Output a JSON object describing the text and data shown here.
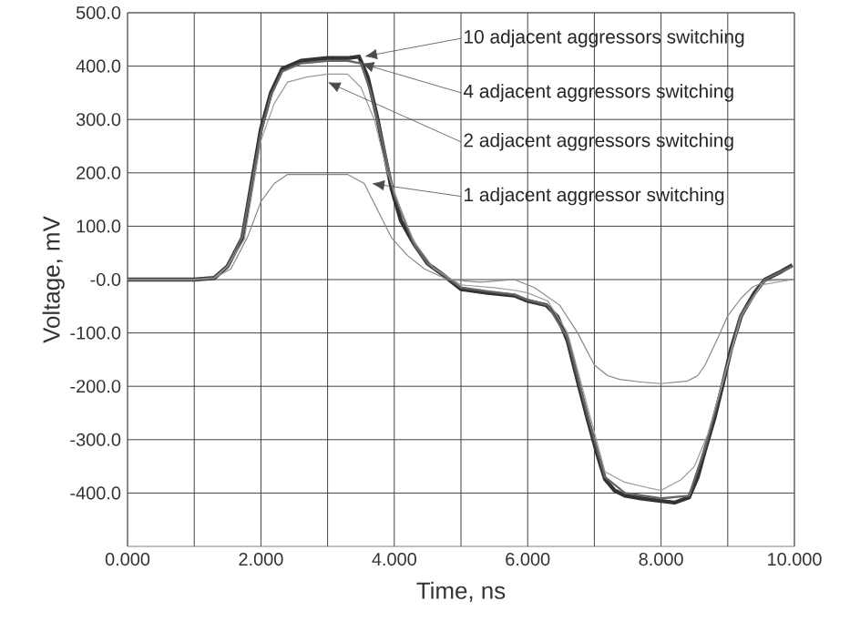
{
  "chart_data": {
    "type": "line",
    "xlabel": "Time, ns",
    "ylabel": "Voltage, mV",
    "xlim": [
      0,
      10
    ],
    "ylim": [
      -500,
      500
    ],
    "xticks": [
      {
        "value": 0,
        "label": "0.000"
      },
      {
        "value": 1,
        "label": null
      },
      {
        "value": 2,
        "label": "2.000"
      },
      {
        "value": 3,
        "label": null
      },
      {
        "value": 4,
        "label": "4.000"
      },
      {
        "value": 5,
        "label": null
      },
      {
        "value": 6,
        "label": "6.000"
      },
      {
        "value": 7,
        "label": null
      },
      {
        "value": 8,
        "label": "8.000"
      },
      {
        "value": 9,
        "label": null
      },
      {
        "value": 10,
        "label": "10.000"
      }
    ],
    "yticks": [
      {
        "value": -400,
        "label": "-400.0"
      },
      {
        "value": -300,
        "label": "-300.0"
      },
      {
        "value": -200,
        "label": "-200.0"
      },
      {
        "value": -100,
        "label": "-100.0"
      },
      {
        "value": 0,
        "label": "-0.0"
      },
      {
        "value": 100,
        "label": "100.0"
      },
      {
        "value": 200,
        "label": "200.0"
      },
      {
        "value": 300,
        "label": "300.0"
      },
      {
        "value": 400,
        "label": "400.0"
      },
      {
        "value": 500,
        "label": "500.0"
      }
    ],
    "grid": true,
    "series": [
      {
        "color": "#333333",
        "x": [
          0,
          1.0,
          1.3,
          1.5,
          1.72,
          2.0,
          2.15,
          2.32,
          2.6,
          3.0,
          3.3,
          3.47,
          3.6,
          3.74,
          3.96,
          4.1,
          4.29,
          4.5,
          4.73,
          5.0,
          5.4,
          5.8,
          6.0,
          6.28,
          6.45,
          6.6,
          6.75,
          6.9,
          7.05,
          7.16,
          7.3,
          7.46,
          7.7,
          8.0,
          8.2,
          8.42,
          8.55,
          8.66,
          8.8,
          8.93,
          9.05,
          9.2,
          9.4,
          9.56,
          9.8,
          9.97
        ],
        "values": [
          0,
          0,
          3,
          25,
          78,
          282,
          350,
          395,
          410,
          415,
          415,
          418,
          380,
          306,
          170,
          110,
          68,
          30,
          9,
          -18,
          -25,
          -30,
          -40,
          -48,
          -70,
          -115,
          -190,
          -262,
          -330,
          -374,
          -395,
          -405,
          -410,
          -415,
          -418,
          -408,
          -370,
          -320,
          -260,
          -194,
          -130,
          -68,
          -25,
          0,
          15,
          27
        ]
      },
      {
        "color": "#666666",
        "x": [
          0,
          1.0,
          1.3,
          1.5,
          1.72,
          2.0,
          2.15,
          2.32,
          2.6,
          3.0,
          3.3,
          3.5,
          3.65,
          3.8,
          4.0,
          4.3,
          4.5,
          4.75,
          5.0,
          5.4,
          5.8,
          6.0,
          6.3,
          6.6,
          6.9,
          7.16,
          7.46,
          8.0,
          8.42,
          8.66,
          8.93,
          9.2,
          9.56,
          9.97
        ],
        "values": [
          0,
          0,
          3,
          25,
          80,
          275,
          345,
          390,
          405,
          410,
          410,
          405,
          350,
          270,
          160,
          65,
          30,
          8,
          -15,
          -22,
          -28,
          -38,
          -48,
          -110,
          -255,
          -370,
          -400,
          -410,
          -405,
          -315,
          -190,
          -65,
          0,
          25
        ]
      },
      {
        "color": "#999999",
        "x": [
          0,
          1.0,
          1.3,
          1.5,
          1.75,
          2.0,
          2.2,
          2.4,
          2.7,
          3.0,
          3.3,
          3.5,
          3.7,
          3.9,
          4.1,
          4.3,
          4.6,
          5.0,
          5.5,
          5.8,
          6.0,
          6.3,
          6.6,
          6.9,
          7.16,
          7.46,
          7.8,
          8.0,
          8.3,
          8.5,
          8.7,
          8.95,
          9.2,
          9.5,
          9.97
        ],
        "values": [
          0,
          0,
          3,
          25,
          75,
          260,
          330,
          370,
          380,
          385,
          385,
          360,
          300,
          200,
          130,
          70,
          20,
          -10,
          -15,
          -20,
          -25,
          -40,
          -100,
          -240,
          -360,
          -380,
          -390,
          -395,
          -375,
          -350,
          -290,
          -180,
          -70,
          -10,
          0
        ]
      },
      {
        "color": "#888888",
        "x": [
          0,
          1.0,
          1.3,
          1.55,
          1.8,
          2.0,
          2.2,
          2.4,
          2.7,
          3.0,
          3.3,
          3.55,
          3.75,
          3.96,
          4.2,
          4.45,
          4.8,
          5.3,
          5.8,
          6.1,
          6.48,
          6.75,
          7.0,
          7.2,
          7.38,
          7.7,
          8.0,
          8.4,
          8.55,
          8.66,
          8.85,
          9.0,
          9.2,
          9.37,
          9.6,
          9.97
        ],
        "values": [
          0,
          0,
          3,
          20,
          80,
          146,
          180,
          197,
          197,
          197,
          197,
          180,
          130,
          78,
          45,
          20,
          0,
          -5,
          0,
          -15,
          -48,
          -100,
          -160,
          -180,
          -187,
          -192,
          -195,
          -190,
          -180,
          -160,
          -110,
          -68,
          -35,
          -14,
          -2,
          0
        ]
      }
    ],
    "annotations": [
      {
        "text": "10 adjacent aggressors switching",
        "x": 3.55,
        "y": 418
      },
      {
        "text": "4 adjacent aggressors switching",
        "x": 3.5,
        "y": 405
      },
      {
        "text": "2 adjacent aggressors switching",
        "x": 3.0,
        "y": 370
      },
      {
        "text": "1 adjacent aggressor switching",
        "x": 3.66,
        "y": 180
      }
    ]
  }
}
